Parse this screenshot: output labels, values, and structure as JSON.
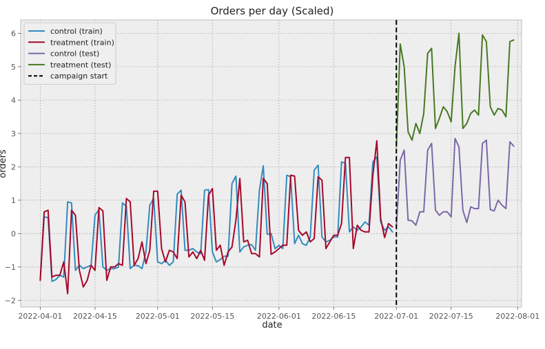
{
  "chart_data": {
    "type": "line",
    "title": "Orders per day (Scaled)",
    "xlabel": "date",
    "ylabel": "orders",
    "xlim": [
      "2022-03-27",
      "2022-08-02"
    ],
    "ylim": [
      -2.2,
      6.4
    ],
    "grid": true,
    "legend_position": "top-left",
    "x_ticks": [
      "2022-04-01",
      "2022-04-15",
      "2022-05-01",
      "2022-05-15",
      "2022-06-01",
      "2022-06-15",
      "2022-07-01",
      "2022-07-15",
      "2022-08-01"
    ],
    "y_ticks": [
      -2,
      -1,
      0,
      1,
      2,
      3,
      4,
      5,
      6
    ],
    "annotations": [
      {
        "type": "vline",
        "x": "2022-07-01",
        "label": "campaign start",
        "color": "#000000",
        "dash": "dashed"
      }
    ],
    "series": [
      {
        "name": "control (train)",
        "color": "#348abd",
        "start_date": "2022-04-01",
        "values": [
          -1.4,
          0.5,
          0.48,
          -1.43,
          -1.38,
          -1.25,
          -1.3,
          0.95,
          0.92,
          -1.1,
          -0.95,
          -1.05,
          -1.0,
          -0.95,
          0.55,
          0.72,
          -1.0,
          -1.1,
          -1.05,
          -1.05,
          -1.0,
          0.92,
          0.82,
          -1.05,
          -0.95,
          -0.96,
          -1.05,
          -0.55,
          0.85,
          1.05,
          -0.85,
          -0.9,
          -0.8,
          -0.95,
          -0.85,
          1.18,
          1.3,
          -0.5,
          -0.5,
          -0.45,
          -0.55,
          -0.6,
          1.3,
          1.32,
          -0.55,
          -0.85,
          -0.78,
          -0.68,
          -0.68,
          1.5,
          1.72,
          -0.55,
          -0.4,
          -0.35,
          -0.33,
          -0.5,
          1.3,
          2.03,
          -0.02,
          0.0,
          -0.45,
          -0.35,
          -0.45,
          1.75,
          1.7,
          -0.3,
          -0.05,
          -0.3,
          -0.35,
          -0.1,
          1.9,
          2.05,
          -0.1,
          -0.25,
          -0.2,
          -0.1,
          -0.1,
          2.15,
          2.1,
          0.05,
          0.2,
          0.1,
          0.2,
          0.35,
          0.25,
          2.15,
          2.3,
          0.35,
          0.1,
          0.2,
          0.05
        ]
      },
      {
        "name": "treatment (train)",
        "color": "#a60628",
        "start_date": "2022-04-01",
        "values": [
          -1.4,
          0.65,
          0.7,
          -1.3,
          -1.25,
          -1.25,
          -0.85,
          -1.8,
          0.7,
          0.55,
          -1.1,
          -1.6,
          -1.4,
          -0.95,
          -1.1,
          0.78,
          0.68,
          -1.4,
          -1.0,
          -1.0,
          -0.9,
          -0.95,
          1.05,
          0.95,
          -0.95,
          -0.75,
          -0.25,
          -0.9,
          -0.5,
          1.27,
          1.27,
          -0.45,
          -0.85,
          -0.5,
          -0.55,
          -0.75,
          1.15,
          0.95,
          -0.7,
          -0.55,
          -0.75,
          -0.5,
          -0.8,
          1.15,
          1.35,
          -0.5,
          -0.35,
          -0.95,
          -0.55,
          -0.4,
          0.4,
          1.65,
          -0.25,
          -0.2,
          -0.6,
          -0.6,
          -0.7,
          1.65,
          1.5,
          -0.62,
          -0.55,
          -0.45,
          -0.35,
          -0.35,
          1.75,
          1.72,
          0.1,
          -0.05,
          0.05,
          -0.25,
          -0.15,
          1.7,
          1.6,
          -0.45,
          -0.25,
          -0.05,
          -0.05,
          0.3,
          2.28,
          2.28,
          -0.45,
          0.25,
          0.1,
          0.05,
          0.05,
          1.75,
          2.78,
          0.45,
          -0.12,
          0.3,
          0.2
        ]
      },
      {
        "name": "control (test)",
        "color": "#7a68a6",
        "start_date": "2022-07-01",
        "values": [
          0.2,
          2.2,
          2.5,
          0.4,
          0.38,
          0.25,
          0.65,
          0.65,
          2.5,
          2.7,
          0.7,
          0.55,
          0.65,
          0.65,
          0.5,
          2.85,
          2.6,
          0.7,
          0.33,
          0.8,
          0.75,
          0.75,
          2.7,
          2.8,
          0.72,
          0.68,
          1.0,
          0.85,
          0.75,
          2.75,
          2.62
        ]
      },
      {
        "name": "treatment (test)",
        "color": "#467821",
        "start_date": "2022-07-01",
        "values": [
          2.6,
          5.68,
          5.0,
          3.05,
          2.8,
          3.3,
          3.0,
          3.6,
          5.4,
          5.55,
          3.15,
          3.45,
          3.8,
          3.65,
          3.35,
          5.0,
          6.0,
          3.15,
          3.3,
          3.6,
          3.7,
          3.55,
          5.95,
          5.75,
          3.8,
          3.55,
          3.75,
          3.7,
          3.5,
          5.75,
          5.8
        ]
      }
    ]
  }
}
